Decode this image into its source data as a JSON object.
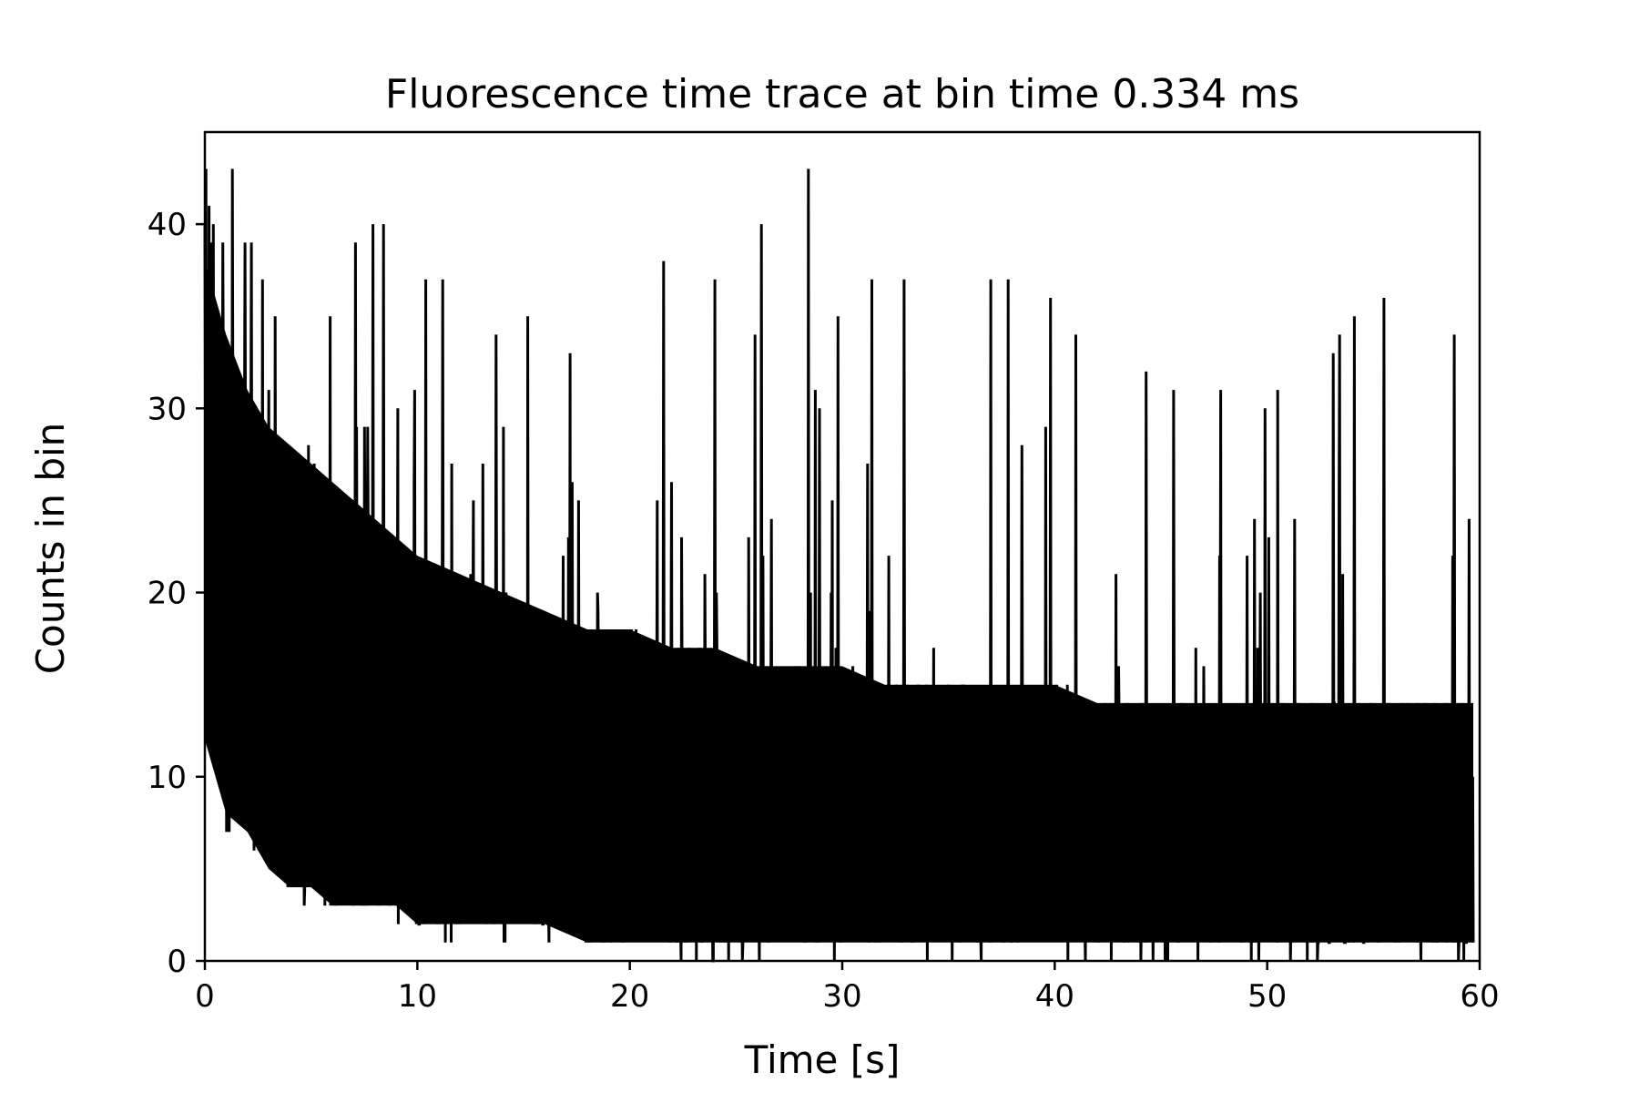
{
  "chart_data": {
    "type": "line",
    "title": "Fluorescence time trace at bin time 0.334 ms",
    "xlabel": "Time [s]",
    "ylabel": "Counts in bin",
    "xlim": [
      0,
      60
    ],
    "ylim": [
      0,
      45
    ],
    "xticks": [
      0,
      10,
      20,
      30,
      40,
      50,
      60
    ],
    "yticks": [
      0,
      10,
      20,
      30,
      40
    ],
    "grid": false,
    "legend": "none",
    "series": [
      {
        "color": "#000000",
        "x_start": 0,
        "x_end": 59.7,
        "envelope": {
          "x": [
            0,
            1,
            2,
            3,
            4,
            5,
            6,
            7,
            8,
            9,
            10,
            12,
            14,
            16,
            18,
            20,
            22,
            24,
            26,
            28,
            30,
            32,
            34,
            36,
            38,
            40,
            42,
            44,
            46,
            48,
            50,
            52,
            54,
            56,
            58,
            59.7
          ],
          "peak_max": [
            43,
            43,
            39,
            35,
            33,
            34,
            35,
            39,
            40,
            37,
            37,
            31,
            34,
            33,
            31,
            32,
            38,
            37,
            40,
            43,
            35,
            37,
            32,
            31,
            37,
            36,
            30,
            29,
            31,
            31,
            30,
            33,
            34,
            36,
            34,
            24
          ],
          "upper_band": [
            38,
            34,
            31,
            29,
            28,
            27,
            26,
            25,
            24,
            23,
            22,
            21,
            20,
            19,
            18,
            18,
            17,
            17,
            16,
            16,
            16,
            15,
            15,
            15,
            15,
            15,
            14,
            14,
            14,
            14,
            14,
            14,
            14,
            14,
            14,
            14
          ],
          "mean": [
            22,
            19,
            17,
            16,
            15,
            14,
            13,
            12.5,
            12,
            11.5,
            11,
            10.5,
            10,
            9.5,
            9,
            9,
            8.5,
            8.5,
            8,
            8,
            8,
            7.5,
            7.5,
            7.5,
            7.5,
            7.5,
            7,
            7,
            7,
            7,
            7,
            7,
            7,
            7,
            7,
            7
          ],
          "lower_band": [
            12,
            8,
            7,
            5,
            4,
            4,
            3,
            3,
            3,
            3,
            2,
            2,
            2,
            2,
            1,
            1,
            1,
            1,
            1,
            1,
            1,
            1,
            1,
            1,
            1,
            1,
            1,
            1,
            1,
            1,
            1,
            1,
            1,
            1,
            1,
            1
          ],
          "min": [
            6,
            6,
            5,
            4,
            2,
            3,
            2,
            2,
            2,
            2,
            1,
            1,
            1,
            1,
            1,
            0,
            0,
            0,
            0,
            0,
            0,
            0,
            0,
            0,
            0,
            0,
            0,
            0,
            0,
            0,
            0,
            0,
            0,
            0,
            0,
            0
          ]
        },
        "highlighted_peaks": [
          {
            "x": 0.05,
            "y": 43
          },
          {
            "x": 0.2,
            "y": 41
          },
          {
            "x": 0.4,
            "y": 40
          },
          {
            "x": 1.3,
            "y": 43
          },
          {
            "x": 0.85,
            "y": 39
          },
          {
            "x": 1.9,
            "y": 39
          },
          {
            "x": 2.2,
            "y": 39
          },
          {
            "x": 2.7,
            "y": 37
          },
          {
            "x": 3.3,
            "y": 35
          },
          {
            "x": 5.9,
            "y": 35
          },
          {
            "x": 7.1,
            "y": 39
          },
          {
            "x": 7.9,
            "y": 40
          },
          {
            "x": 8.4,
            "y": 40
          },
          {
            "x": 10.4,
            "y": 37
          },
          {
            "x": 11.2,
            "y": 37
          },
          {
            "x": 13.7,
            "y": 34
          },
          {
            "x": 15.2,
            "y": 35
          },
          {
            "x": 17.2,
            "y": 33
          },
          {
            "x": 21.6,
            "y": 38
          },
          {
            "x": 24.0,
            "y": 37
          },
          {
            "x": 25.9,
            "y": 34
          },
          {
            "x": 26.2,
            "y": 40
          },
          {
            "x": 28.4,
            "y": 43
          },
          {
            "x": 29.8,
            "y": 35
          },
          {
            "x": 31.4,
            "y": 37
          },
          {
            "x": 32.9,
            "y": 37
          },
          {
            "x": 37.0,
            "y": 37
          },
          {
            "x": 37.8,
            "y": 37
          },
          {
            "x": 39.8,
            "y": 36
          },
          {
            "x": 41.0,
            "y": 34
          },
          {
            "x": 44.3,
            "y": 32
          },
          {
            "x": 45.6,
            "y": 31
          },
          {
            "x": 47.8,
            "y": 31
          },
          {
            "x": 49.9,
            "y": 30
          },
          {
            "x": 50.5,
            "y": 31
          },
          {
            "x": 53.1,
            "y": 33
          },
          {
            "x": 53.4,
            "y": 34
          },
          {
            "x": 54.1,
            "y": 35
          },
          {
            "x": 55.5,
            "y": 36
          },
          {
            "x": 58.8,
            "y": 34
          },
          {
            "x": 59.5,
            "y": 24
          }
        ]
      }
    ]
  }
}
